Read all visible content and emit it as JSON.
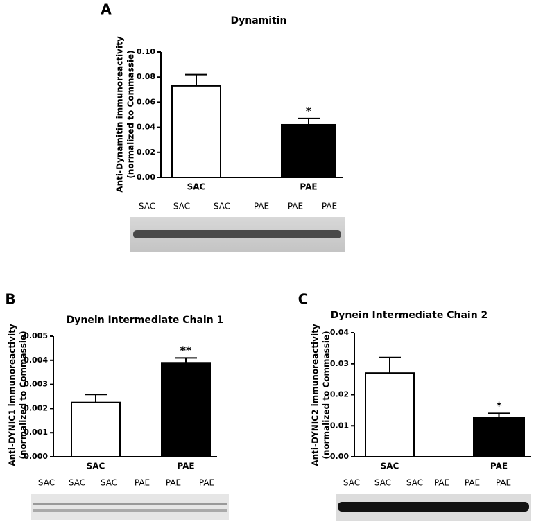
{
  "chart_data": [
    {
      "type": "bar",
      "panel": "A",
      "title": "Dynamitin",
      "y_label": [
        "Anti-Dynamitin immunoreactivity",
        "(normalized to Commassie)"
      ],
      "categories": [
        "SAC",
        "PAE"
      ],
      "values": [
        0.073,
        0.042
      ],
      "errors": [
        0.009,
        0.005
      ],
      "colors": [
        "#ffffff",
        "#000000"
      ],
      "significance": [
        null,
        "*"
      ],
      "ylim": [
        0,
        0.1
      ],
      "yticks": [
        {
          "value": 0,
          "label": "0.00"
        },
        {
          "value": 0.02,
          "label": "0.02"
        },
        {
          "value": 0.04,
          "label": "0.04"
        },
        {
          "value": 0.06,
          "label": "0.06"
        },
        {
          "value": 0.08,
          "label": "0.08"
        },
        {
          "value": 0.1,
          "label": "0.10"
        }
      ],
      "lane_labels": [
        "SAC",
        "SAC",
        "SAC",
        "PAE",
        "PAE",
        "PAE"
      ]
    },
    {
      "type": "bar",
      "panel": "B",
      "title": "Dynein Intermediate Chain 1",
      "y_label": [
        "Anti-DYNIC1 immunoreactivity",
        "(normalized to Commassie)"
      ],
      "categories": [
        "SAC",
        "PAE"
      ],
      "values": [
        0.00225,
        0.0039
      ],
      "errors": [
        0.00033,
        0.0002
      ],
      "colors": [
        "#ffffff",
        "#000000"
      ],
      "significance": [
        null,
        "**"
      ],
      "ylim": [
        0,
        0.005
      ],
      "yticks": [
        {
          "value": 0,
          "label": "0.000"
        },
        {
          "value": 0.001,
          "label": "0.001"
        },
        {
          "value": 0.002,
          "label": "0.002"
        },
        {
          "value": 0.003,
          "label": "0.003"
        },
        {
          "value": 0.004,
          "label": "0.004"
        },
        {
          "value": 0.005,
          "label": "0.005"
        }
      ],
      "lane_labels": [
        "SAC",
        "SAC",
        "SAC",
        "PAE",
        "PAE",
        "PAE"
      ]
    },
    {
      "type": "bar",
      "panel": "C",
      "title": "Dynein Intermediate Chain 2",
      "y_label": [
        "Anti-DYNIC2 immunoreactivity",
        "(normalized to Commassie)"
      ],
      "categories": [
        "SAC",
        "PAE"
      ],
      "values": [
        0.027,
        0.0127
      ],
      "errors": [
        0.005,
        0.0013
      ],
      "colors": [
        "#ffffff",
        "#000000"
      ],
      "significance": [
        null,
        "*"
      ],
      "ylim": [
        0,
        0.04
      ],
      "yticks": [
        {
          "value": 0,
          "label": "0.00"
        },
        {
          "value": 0.01,
          "label": "0.01"
        },
        {
          "value": 0.02,
          "label": "0.02"
        },
        {
          "value": 0.03,
          "label": "0.03"
        },
        {
          "value": 0.04,
          "label": "0.04"
        }
      ],
      "lane_labels": [
        "SAC",
        "SAC",
        "SAC",
        "PAE",
        "PAE",
        "PAE"
      ]
    }
  ]
}
